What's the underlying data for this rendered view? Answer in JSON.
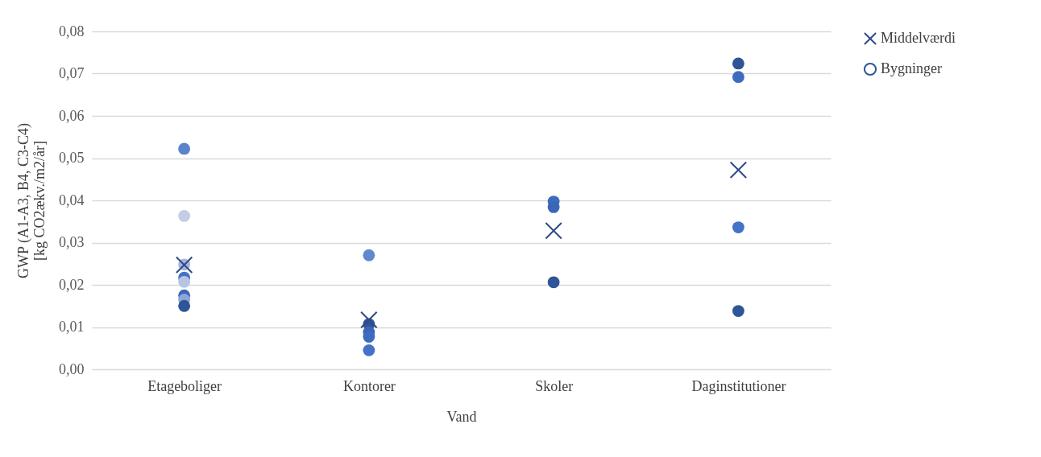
{
  "chart_data": {
    "type": "scatter",
    "xlabel": "Vand",
    "ylabel": "GWP (A1-A3, B4, C3-C4)\n[kg CO2ækv./m2/år]",
    "categories": [
      "Etageboliger",
      "Kontorer",
      "Skoler",
      "Daginstitutioner"
    ],
    "ylim": [
      0,
      0.08
    ],
    "yticks": [
      {
        "value": 0,
        "label": "0,00"
      },
      {
        "value": 0.01,
        "label": "0,01"
      },
      {
        "value": 0.02,
        "label": "0,02"
      },
      {
        "value": 0.03,
        "label": "0,03"
      },
      {
        "value": 0.04,
        "label": "0,04"
      },
      {
        "value": 0.05,
        "label": "0,05"
      },
      {
        "value": 0.06,
        "label": "0,06"
      },
      {
        "value": 0.07,
        "label": "0,07"
      },
      {
        "value": 0.08,
        "label": "0,08"
      }
    ],
    "grid": "y",
    "legend": "right",
    "series": [
      {
        "name": "Middelværdi",
        "color": "#2e4a86",
        "marker": "cross",
        "x": [
          "Etageboliger",
          "Kontorer",
          "Skoler",
          "Daginstitutioner"
        ],
        "values": [
          0.0247,
          0.0117,
          0.0328,
          0.0472
        ]
      },
      {
        "name": "Bygninger",
        "color": "#2f5597",
        "marker": "circle",
        "x": [
          "Etageboliger",
          "Etageboliger",
          "Etageboliger",
          "Etageboliger",
          "Etageboliger",
          "Etageboliger",
          "Etageboliger",
          "Etageboliger",
          "Kontorer",
          "Kontorer",
          "Kontorer",
          "Kontorer",
          "Kontorer",
          "Skoler",
          "Skoler",
          "Skoler",
          "Daginstitutioner",
          "Daginstitutioner",
          "Daginstitutioner",
          "Daginstitutioner"
        ],
        "values": [
          0.0522,
          0.0363,
          0.0248,
          0.0217,
          0.0207,
          0.0175,
          0.0165,
          0.015,
          0.027,
          0.0107,
          0.0088,
          0.0077,
          0.0045,
          0.0397,
          0.0384,
          0.0206,
          0.0724,
          0.0692,
          0.0336,
          0.0138
        ],
        "colors": [
          "#5b82cc",
          "#c5cde6",
          "#a4b4dc",
          "#4472c4",
          "#b8c4e4",
          "#3a66b8",
          "#8ea6d8",
          "#2f5597",
          "#6288cc",
          "#2f5597",
          "#3a66b8",
          "#3d6bbd",
          "#4472c4",
          "#3d6bbd",
          "#3a66b8",
          "#2f5597",
          "#2f5597",
          "#3d6bbd",
          "#4472c4",
          "#2f5597"
        ]
      }
    ]
  }
}
